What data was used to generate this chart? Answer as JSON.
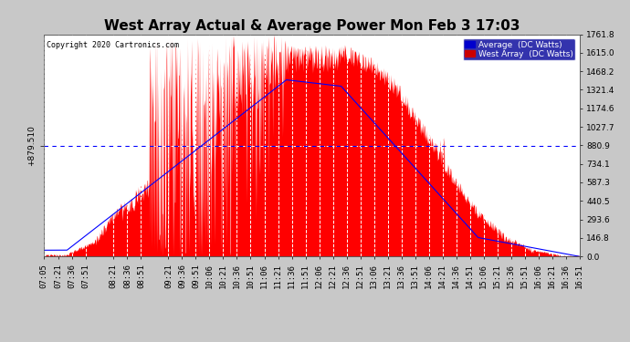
{
  "title": "West Array Actual & Average Power Mon Feb 3 17:03",
  "copyright": "Copyright 2020 Cartronics.com",
  "legend_items": [
    {
      "label": "Average  (DC Watts)",
      "color": "#0000cc"
    },
    {
      "label": "West Array  (DC Watts)",
      "color": "#cc0000"
    }
  ],
  "y_left_label": "+879.510",
  "y_right_ticks": [
    0.0,
    146.8,
    293.6,
    440.5,
    587.3,
    734.1,
    880.9,
    1027.7,
    1174.6,
    1321.4,
    1468.2,
    1615.0,
    1761.8
  ],
  "y_hline": 879.51,
  "y_max": 1761.8,
  "fill_color": "#ff0000",
  "avg_line_color": "#0000ff",
  "background_color": "#c8c8c8",
  "plot_bg_color": "#ffffff",
  "grid_color": "#aaaaaa",
  "title_fontsize": 11,
  "tick_fontsize": 6.5,
  "x_tick_labels": [
    "07:05",
    "07:21",
    "07:36",
    "07:51",
    "08:21",
    "08:36",
    "08:51",
    "09:21",
    "09:36",
    "09:51",
    "10:06",
    "10:21",
    "10:36",
    "10:51",
    "11:06",
    "11:21",
    "11:36",
    "11:51",
    "12:06",
    "12:21",
    "12:36",
    "12:51",
    "13:06",
    "13:21",
    "13:36",
    "13:51",
    "14:06",
    "14:21",
    "14:36",
    "14:51",
    "15:06",
    "15:21",
    "15:36",
    "15:51",
    "16:06",
    "16:21",
    "16:36",
    "16:51"
  ]
}
